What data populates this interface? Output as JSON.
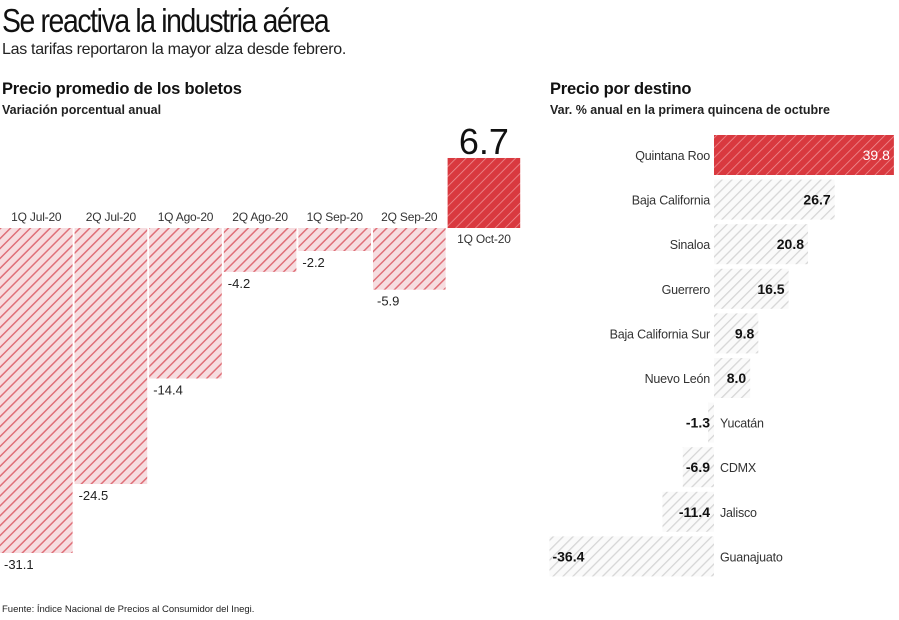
{
  "header": {
    "title": "Se reactiva la industria aérea",
    "subtitle": "Las tarifas reportaron la mayor alza desde febrero."
  },
  "source": "Fuente: Índice Nacional de Precios al Consumidor del Inegi.",
  "colors": {
    "accent": "#d9393f",
    "hatch_light": "#cfcfcf",
    "hatch_red": "#e07880"
  },
  "chart_data": [
    {
      "type": "bar",
      "title": "Precio promedio de los boletos",
      "subtitle": "Variación porcentual anual",
      "categories": [
        "1Q Jul-20",
        "2Q Jul-20",
        "1Q Ago-20",
        "2Q Ago-20",
        "1Q Sep-20",
        "2Q Sep-20",
        "1Q Oct-20"
      ],
      "values": [
        -31.1,
        -24.5,
        -14.4,
        -4.2,
        -2.2,
        -5.9,
        6.7
      ],
      "labels": [
        "-31.1",
        "-24.5",
        "-14.4",
        "-4.2",
        "-2.2",
        "-5.9",
        "6.7"
      ],
      "ylim": [
        -32,
        7
      ],
      "grid": false,
      "legend": "none"
    },
    {
      "type": "bar",
      "orientation": "horizontal",
      "title": "Precio por destino",
      "subtitle": "Var. % anual en la primera quincena de octubre",
      "categories": [
        "Quintana Roo",
        "Baja California",
        "Sinaloa",
        "Guerrero",
        "Baja California Sur",
        "Nuevo León",
        "Yucatán",
        "CDMX",
        "Jalisco",
        "Guanajuato"
      ],
      "values": [
        39.8,
        26.7,
        20.8,
        16.5,
        9.8,
        8.0,
        -1.3,
        -6.9,
        -11.4,
        -36.4
      ],
      "labels": [
        "39.8",
        "26.7",
        "20.8",
        "16.5",
        "9.8",
        "8.0",
        "-1.3",
        "-6.9",
        "-11.4",
        "-36.4"
      ],
      "xlim": [
        -37,
        41
      ],
      "grid": false,
      "legend": "none"
    }
  ]
}
